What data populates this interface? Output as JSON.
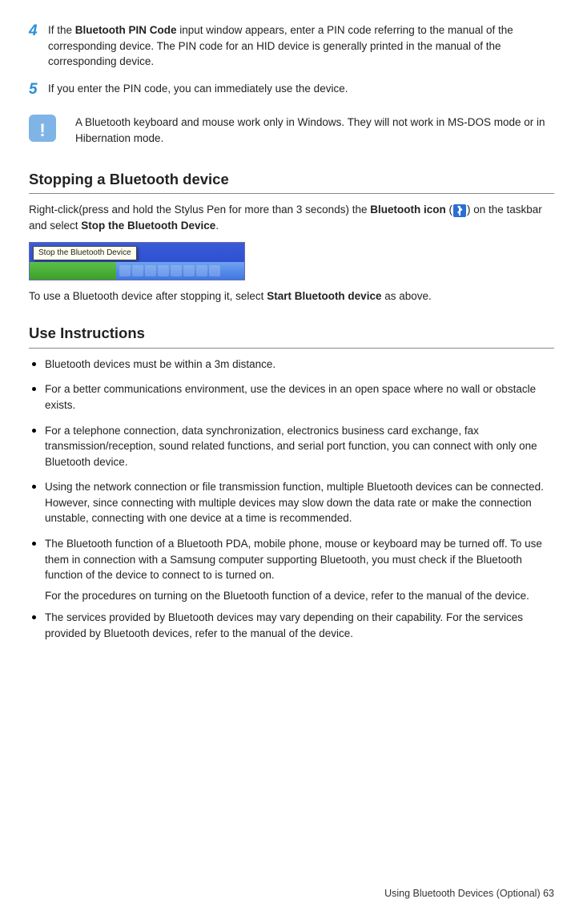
{
  "steps": {
    "s4_num": "4",
    "s4_pre": "If the ",
    "s4_b1": "Bluetooth PIN Code",
    "s4_post": " input window appears, enter a PIN code referring to the manual of the corresponding device. The PIN code for an HID device is generally printed in the manual of the corresponding device.",
    "s5_num": "5",
    "s5_txt": "If you enter the PIN code, you can immediately use the device."
  },
  "note": {
    "text": "A Bluetooth keyboard and mouse work only in Windows. They will not work in MS-DOS mode or in Hibernation mode."
  },
  "stopping": {
    "heading": "Stopping a Bluetooth device",
    "p1_pre": "Right-click(press and hold the Stylus Pen for more than 3 seconds) the ",
    "p1_b1": "Bluetooth icon",
    "p1_mid": " (",
    "p1_post": ") on the taskbar and select ",
    "p1_b2": "Stop the Bluetooth Device",
    "p1_end": ".",
    "tooltip": "Stop the Bluetooth Device",
    "p2_pre": "To use a Bluetooth device after stopping it, select ",
    "p2_b1": "Start Bluetooth device",
    "p2_post": " as above."
  },
  "use": {
    "heading": "Use Instructions",
    "items": [
      "Bluetooth devices must be within a 3m distance.",
      "For a better communications environment, use the devices in an open space where no wall or obstacle exists.",
      "For a telephone connection, data synchronization, electronics business card exchange, fax transmission/reception, sound related functions, and serial port function, you can connect with only one Bluetooth device.",
      "Using the network connection or file transmission function, multiple Bluetooth devices can be connected. However, since connecting with multiple devices may slow down the data rate or make the connection unstable, connecting with one device at a time is recommended.",
      "The Bluetooth function of a Bluetooth PDA, mobile phone, mouse or keyboard may be turned off. To use them in connection with a Samsung computer supporting Bluetooth, you must check if the Bluetooth function of the device to connect to is turned on.",
      "The services provided by Bluetooth devices may vary depending on their capability. For the services provided by Bluetooth devices, refer to the manual of the device."
    ],
    "sub_after_5": "For the procedures on turning on the Bluetooth function of a device, refer to the manual of the device."
  },
  "footer": {
    "text": "Using Bluetooth Devices (Optional)   63"
  },
  "colors": {
    "step_number": "#2a8fd8",
    "note_icon_bg": "#7fb4e6",
    "bt_icon_bg": "#2a6fd6",
    "rule": "#888888"
  }
}
